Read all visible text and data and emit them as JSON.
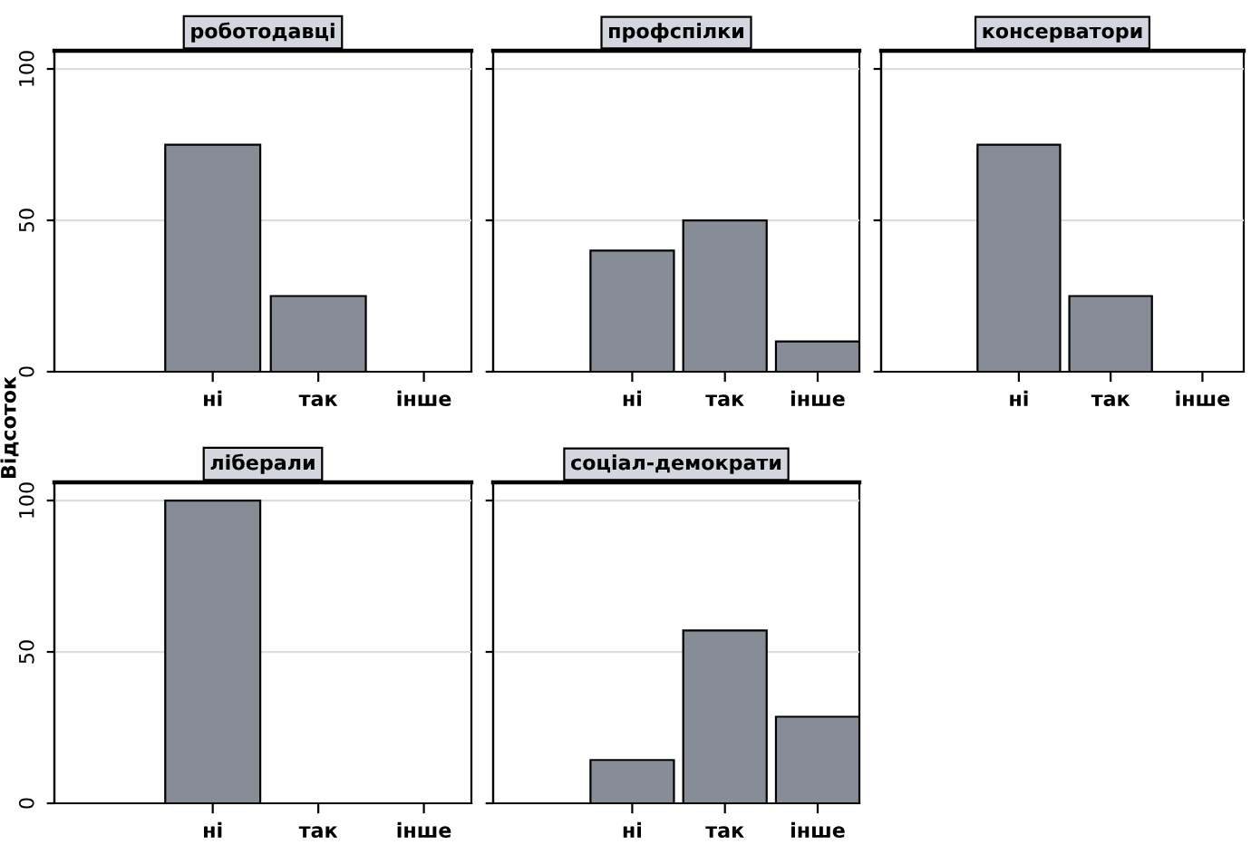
{
  "chart_data": [
    {
      "type": "bar",
      "title": "роботодавці",
      "ylabel": "Відсоток",
      "categories": [
        "ні",
        "так",
        "інше"
      ],
      "values": [
        75,
        25,
        0
      ],
      "color": "#878d96",
      "ylim": [
        0,
        106
      ],
      "yticks": [
        0,
        50,
        100
      ],
      "grid": "y"
    },
    {
      "type": "bar",
      "title": "профспілки",
      "categories": [
        "ні",
        "так",
        "інше"
      ],
      "values": [
        40,
        50,
        10
      ],
      "color": "#878d96",
      "ylim": [
        0,
        106
      ],
      "yticks": [
        0,
        50,
        100
      ],
      "grid": "y",
      "tick_labels": "x"
    },
    {
      "type": "bar",
      "title": "консерватори",
      "categories": [
        "ні",
        "так",
        "інше"
      ],
      "values": [
        75,
        25,
        0
      ],
      "color": "#878d96",
      "ylim": [
        0,
        106
      ],
      "yticks": [
        0,
        50,
        100
      ],
      "grid": "y",
      "tick_labels": "x"
    },
    {
      "type": "bar",
      "title": "ліберали",
      "categories": [
        "ні",
        "так",
        "інше"
      ],
      "values": [
        100,
        0,
        0
      ],
      "color": "#878d96",
      "ylim": [
        0,
        106
      ],
      "yticks": [
        0,
        50,
        100
      ],
      "grid": "y"
    },
    {
      "type": "bar",
      "title": "соціал-демократи",
      "categories": [
        "ні",
        "так",
        "інше"
      ],
      "values": [
        14.3,
        57.1,
        28.6
      ],
      "color": "#878d96",
      "ylim": [
        0,
        106
      ],
      "yticks": [
        0,
        50,
        100
      ],
      "grid": "y",
      "tick_labels": "x"
    }
  ]
}
